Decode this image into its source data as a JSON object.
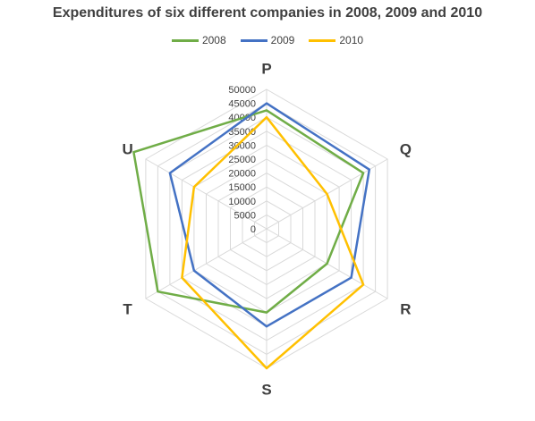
{
  "chart_data": {
    "type": "radar",
    "title": "Expenditures of six different companies in 2008, 2009 and 2010",
    "categories": [
      "P",
      "Q",
      "R",
      "S",
      "T",
      "U"
    ],
    "ticks": [
      "0",
      "5000",
      "10000",
      "15000",
      "20000",
      "25000",
      "30000",
      "35000",
      "40000",
      "45000",
      "50000"
    ],
    "rlim": [
      0,
      50000
    ],
    "grid": true,
    "legend_position": "top",
    "series": [
      {
        "name": "2008",
        "color": "#70ad47",
        "values": [
          42500,
          40000,
          25000,
          30000,
          45000,
          55000
        ]
      },
      {
        "name": "2009",
        "color": "#4472c4",
        "values": [
          45000,
          42500,
          35000,
          35000,
          30000,
          40000
        ]
      },
      {
        "name": "2010",
        "color": "#ffc000",
        "values": [
          40000,
          25000,
          40000,
          50000,
          35000,
          30000
        ]
      }
    ]
  }
}
